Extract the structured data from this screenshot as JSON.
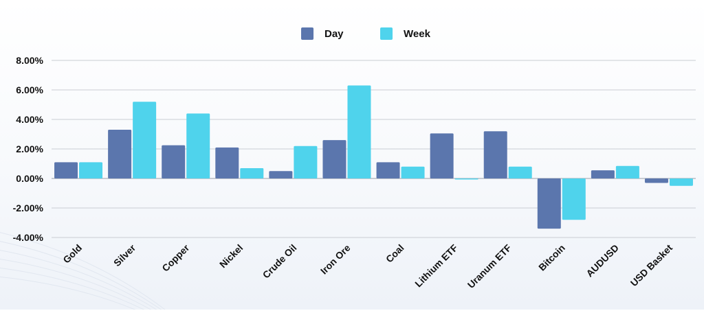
{
  "chart_data": {
    "type": "bar",
    "title": "",
    "xlabel": "",
    "ylabel": "",
    "categories": [
      "Gold",
      "Silver",
      "Copper",
      "Nickel",
      "Crude Oil",
      "Iron Ore",
      "Coal",
      "Lithium ETF",
      "Uranum ETF",
      "Bitcoin",
      "AUDUSD",
      "USD Basket"
    ],
    "series": [
      {
        "name": "Day",
        "values": [
          1.1,
          3.3,
          2.25,
          2.1,
          0.5,
          2.6,
          1.1,
          3.05,
          3.2,
          -3.4,
          0.55,
          -0.3
        ]
      },
      {
        "name": "Week",
        "values": [
          1.1,
          5.2,
          4.4,
          0.7,
          2.2,
          6.3,
          0.8,
          -0.05,
          0.8,
          -2.8,
          0.85,
          -0.5
        ]
      }
    ],
    "ylim": [
      -4,
      8
    ],
    "yticks": [
      -4,
      -2,
      0,
      2,
      4,
      6,
      8
    ],
    "ytick_labels": [
      "-4.00%",
      "-2.00%",
      "0.00%",
      "2.00%",
      "4.00%",
      "6.00%",
      "8.00%"
    ],
    "grid": true,
    "legend_position": "top-center",
    "colors": {
      "Day": "#5b76ad",
      "Week": "#4fd3ec",
      "grid": "#c9cdd3",
      "text": "#111111"
    }
  }
}
